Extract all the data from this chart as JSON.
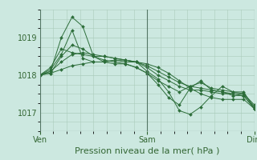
{
  "background_color": "#cce8e0",
  "plot_bg_color": "#cce8e0",
  "grid_color": "#aaccbb",
  "line_color": "#2d6e3a",
  "marker_color": "#2d6e3a",
  "xlabel": "Pression niveau de la mer( hPa )",
  "xlabel_fontsize": 8,
  "yticks": [
    1017,
    1018,
    1019
  ],
  "ylim": [
    1016.5,
    1019.75
  ],
  "xlim": [
    0,
    48
  ],
  "xtick_positions": [
    0,
    24,
    48
  ],
  "xtick_labels": [
    "Ven",
    "Sam",
    "Dim"
  ],
  "vlines": [
    0,
    24,
    48
  ],
  "series": [
    [
      1018.0,
      1018.1,
      1019.0,
      1019.55,
      1019.3,
      1018.5,
      1018.35,
      1018.4,
      1018.35,
      1018.35,
      1018.1,
      1017.9,
      1017.55,
      1017.05,
      1016.95,
      1017.15,
      1017.45,
      1017.7,
      1017.55,
      1017.55,
      1017.1
    ],
    [
      1018.0,
      1018.05,
      1018.5,
      1018.8,
      1018.7,
      1018.5,
      1018.4,
      1018.35,
      1018.3,
      1018.2,
      1018.05,
      1017.85,
      1017.7,
      1017.55,
      1017.7,
      1017.8,
      1017.65,
      1017.6,
      1017.55,
      1017.5,
      1017.15
    ],
    [
      1018.0,
      1018.1,
      1018.35,
      1018.55,
      1018.6,
      1018.55,
      1018.5,
      1018.45,
      1018.4,
      1018.35,
      1018.25,
      1018.1,
      1017.95,
      1017.8,
      1017.7,
      1017.65,
      1017.6,
      1017.55,
      1017.5,
      1017.5,
      1017.2
    ],
    [
      1018.0,
      1018.05,
      1018.15,
      1018.25,
      1018.3,
      1018.35,
      1018.35,
      1018.4,
      1018.4,
      1018.35,
      1018.3,
      1018.2,
      1018.05,
      1017.85,
      1017.65,
      1017.5,
      1017.4,
      1017.35,
      1017.35,
      1017.35,
      1017.1
    ],
    [
      1018.0,
      1018.15,
      1018.55,
      1019.2,
      1018.45,
      1018.35,
      1018.35,
      1018.3,
      1018.3,
      1018.2,
      1018.05,
      1017.75,
      1017.4,
      1017.2,
      1017.65,
      1017.85,
      1017.6,
      1017.55,
      1017.45,
      1017.45,
      1017.1
    ],
    [
      1018.0,
      1018.2,
      1018.7,
      1018.6,
      1018.55,
      1018.5,
      1018.5,
      1018.45,
      1018.4,
      1018.35,
      1018.2,
      1018.0,
      1017.85,
      1017.7,
      1017.6,
      1017.6,
      1017.55,
      1017.5,
      1017.5,
      1017.45,
      1017.1
    ]
  ]
}
